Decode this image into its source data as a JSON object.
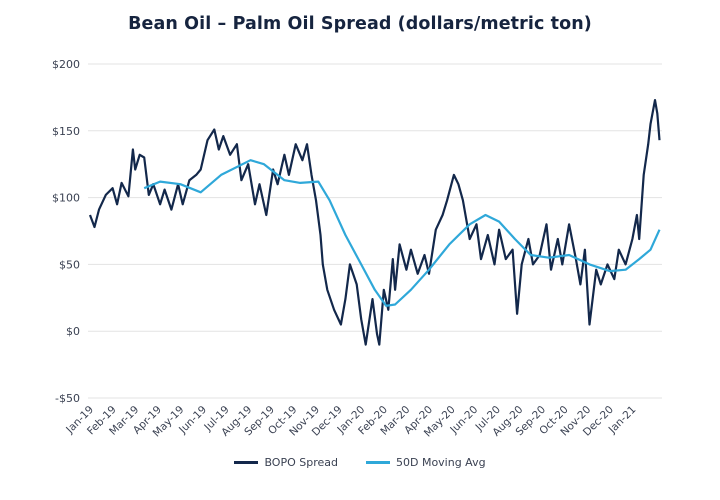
{
  "chart_data": {
    "type": "line",
    "title": "Bean Oil – Palm Oil Spread (dollars/metric ton)",
    "xlabel": "",
    "ylabel": "",
    "ylim": [
      -50,
      200
    ],
    "yticks": [
      200,
      150,
      100,
      50,
      0,
      -50
    ],
    "ytick_labels": [
      "$200",
      "$150",
      "$100",
      "$50",
      "$0",
      "-$50"
    ],
    "x_unit": "months since Jan-19",
    "xlim": [
      0,
      25.2
    ],
    "xtick_labels": [
      "Jan-19",
      "Feb-19",
      "Mar-19",
      "Apr-19",
      "May-19",
      "Jun-19",
      "Jul-19",
      "Aug-19",
      "Sep-19",
      "Oct-19",
      "Nov-19",
      "Dec-19",
      "Jan-20",
      "Feb-20",
      "Mar-20",
      "Apr-20",
      "May-20",
      "Jun-20",
      "Jul-20",
      "Aug-20",
      "Sep-20",
      "Oct-20",
      "Nov-20",
      "Dec-20",
      "Jan-21"
    ],
    "grid": true,
    "legend_position": "bottom-center",
    "series": [
      {
        "name": "BOPO Spread",
        "color": "#13284b",
        "x": [
          0,
          0.2,
          0.4,
          0.7,
          1,
          1.2,
          1.4,
          1.7,
          1.9,
          2,
          2.2,
          2.4,
          2.6,
          2.8,
          3.1,
          3.3,
          3.6,
          3.9,
          4.1,
          4.4,
          4.7,
          4.9,
          5.2,
          5.5,
          5.7,
          5.9,
          6.2,
          6.5,
          6.7,
          7,
          7.3,
          7.5,
          7.8,
          8.1,
          8.3,
          8.6,
          8.8,
          9.1,
          9.4,
          9.6,
          9.8,
          10,
          10.2,
          10.3,
          10.5,
          10.8,
          11.1,
          11.3,
          11.5,
          11.8,
          12,
          12.2,
          12.5,
          12.7,
          12.8,
          13,
          13.2,
          13.4,
          13.5,
          13.7,
          14,
          14.2,
          14.5,
          14.8,
          15,
          15.3,
          15.6,
          15.8,
          16.1,
          16.3,
          16.5,
          16.8,
          17.1,
          17.3,
          17.6,
          17.9,
          18.1,
          18.4,
          18.7,
          18.9,
          19.1,
          19.4,
          19.6,
          19.9,
          20.2,
          20.4,
          20.7,
          20.9,
          21.2,
          21.5,
          21.7,
          21.9,
          22.1,
          22.4,
          22.6,
          22.9,
          23.2,
          23.4,
          23.7,
          24,
          24.2,
          24.3,
          24.5,
          24.7,
          24.8,
          25,
          25.1,
          25.2
        ],
        "values": [
          87,
          78,
          91,
          102,
          107,
          95,
          111,
          101,
          136,
          121,
          132,
          130,
          102,
          110,
          95,
          106,
          91,
          110,
          95,
          113,
          117,
          121,
          143,
          151,
          136,
          146,
          132,
          140,
          113,
          125,
          95,
          110,
          87,
          121,
          110,
          132,
          117,
          140,
          128,
          140,
          117,
          98,
          72,
          50,
          31,
          16,
          5,
          24,
          50,
          35,
          9,
          -10,
          24,
          -2,
          -10,
          31,
          16,
          54,
          31,
          65,
          46,
          61,
          43,
          57,
          43,
          76,
          87,
          98,
          117,
          110,
          98,
          69,
          80,
          54,
          72,
          50,
          76,
          54,
          61,
          13,
          50,
          69,
          50,
          57,
          80,
          46,
          69,
          50,
          80,
          54,
          35,
          61,
          5,
          46,
          35,
          50,
          39,
          61,
          50,
          69,
          87,
          69,
          117,
          140,
          155,
          173,
          163,
          143
        ]
      },
      {
        "name": "50D Moving Avg",
        "color": "#2fa8d9",
        "x": [
          2.4,
          3.1,
          4,
          4.9,
          5.8,
          7.1,
          7.7,
          8.6,
          9.3,
          10.1,
          10.6,
          11.3,
          12,
          12.6,
          13.1,
          13.5,
          14.2,
          15,
          15.9,
          16.8,
          17.5,
          18.1,
          18.8,
          19.5,
          20.3,
          21.2,
          22.1,
          23,
          23.7,
          24.3,
          24.8,
          25.2
        ],
        "values": [
          107,
          112,
          110,
          104,
          117,
          128,
          125,
          113,
          111,
          112,
          98,
          72,
          50,
          31,
          19,
          20,
          31,
          46,
          65,
          80,
          87,
          82,
          69,
          57,
          55,
          57,
          50,
          45,
          46,
          54,
          61,
          76
        ]
      }
    ]
  }
}
